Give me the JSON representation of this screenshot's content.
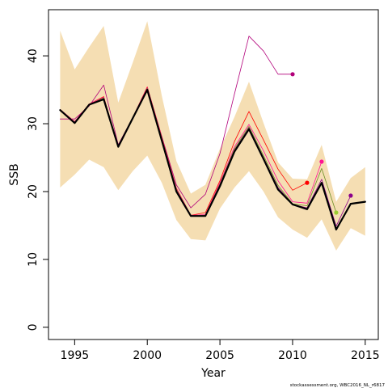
{
  "chart_data": {
    "type": "line",
    "xlabel": "Year",
    "ylabel": "SSB",
    "xlim": [
      1993.2,
      2015.9
    ],
    "ylim": [
      -1.8,
      46.8
    ],
    "x_ticks": [
      1995,
      2000,
      2005,
      2010,
      2015
    ],
    "y_ticks": [
      0,
      10,
      20,
      30,
      40
    ],
    "grid": false,
    "legend": "none",
    "confidence_band": {
      "color": "#f5deb3",
      "x": [
        1994,
        1995,
        1996,
        1997,
        1998,
        1999,
        2000,
        2001,
        2002,
        2003,
        2004,
        2005,
        2006,
        2007,
        2008,
        2009,
        2010,
        2011,
        2012,
        2013,
        2014,
        2015
      ],
      "lower": [
        20.6,
        22.5,
        24.7,
        23.6,
        20.2,
        23.0,
        25.3,
        21.3,
        15.8,
        13.0,
        12.8,
        17.5,
        20.6,
        23.0,
        20.0,
        16.2,
        14.4,
        13.2,
        15.9,
        11.3,
        14.6,
        13.5
      ],
      "upper": [
        43.7,
        38.0,
        41.3,
        44.4,
        33.1,
        39.0,
        45.1,
        34.1,
        24.5,
        19.7,
        21.0,
        26.3,
        31.0,
        36.2,
        30.1,
        24.3,
        21.9,
        21.8,
        26.9,
        18.5,
        22.0,
        23.6
      ]
    },
    "series": [
      {
        "color": "#b2007a",
        "width": 0.8,
        "x": [
          1994,
          1995,
          1996,
          1997,
          1998,
          1999,
          2000,
          2001,
          2002,
          2003,
          2004,
          2005,
          2006,
          2007,
          2008,
          2009,
          2010
        ],
        "values": [
          30.7,
          30.7,
          32.6,
          35.7,
          26.9,
          30.9,
          35.4,
          28.1,
          21.0,
          17.6,
          19.6,
          25.6,
          34.4,
          42.9,
          40.7,
          37.3,
          37.3
        ],
        "end_dot": true
      },
      {
        "color": "#ff0000",
        "width": 0.8,
        "x": [
          1994,
          1995,
          1996,
          1997,
          1998,
          1999,
          2000,
          2001,
          2002,
          2003,
          2004,
          2005,
          2006,
          2007,
          2008,
          2009,
          2010,
          2011
        ],
        "values": [
          32.1,
          30.3,
          32.9,
          34.0,
          26.6,
          30.9,
          35.4,
          28.0,
          20.5,
          16.5,
          16.9,
          21.6,
          27.4,
          31.8,
          27.6,
          23.3,
          20.2,
          21.3
        ],
        "end_dot": true
      },
      {
        "color": "#ff1493",
        "width": 0.8,
        "x": [
          1994,
          1995,
          1996,
          1997,
          1998,
          1999,
          2000,
          2001,
          2002,
          2003,
          2004,
          2005,
          2006,
          2007,
          2008,
          2009,
          2010,
          2011,
          2012
        ],
        "values": [
          32.1,
          30.3,
          32.9,
          33.9,
          26.6,
          30.9,
          35.3,
          27.9,
          20.4,
          16.5,
          16.6,
          21.3,
          26.6,
          29.9,
          26.0,
          21.6,
          18.5,
          18.3,
          24.4
        ],
        "end_dot": true
      },
      {
        "color": "#6b8e23",
        "width": 0.8,
        "x": [
          1994,
          1995,
          1996,
          1997,
          1998,
          1999,
          2000,
          2001,
          2002,
          2003,
          2004,
          2005,
          2006,
          2007,
          2008,
          2009,
          2010,
          2011,
          2012,
          2013
        ],
        "values": [
          32.0,
          30.2,
          32.8,
          33.8,
          26.6,
          30.8,
          35.2,
          27.8,
          20.3,
          16.4,
          16.5,
          21.1,
          26.3,
          29.6,
          25.3,
          20.9,
          18.2,
          17.9,
          23.4,
          16.9
        ],
        "end_dot_color": "#9acd32",
        "end_dot": true
      },
      {
        "color": "#8b008b",
        "width": 0.8,
        "x": [
          1994,
          1995,
          1996,
          1997,
          1998,
          1999,
          2000,
          2001,
          2002,
          2003,
          2004,
          2005,
          2006,
          2007,
          2008,
          2009,
          2010,
          2011,
          2012,
          2013,
          2014
        ],
        "values": [
          32.0,
          30.2,
          32.8,
          33.7,
          26.6,
          30.8,
          35.1,
          27.7,
          20.2,
          16.4,
          16.4,
          21.0,
          26.1,
          29.4,
          25.0,
          20.6,
          18.1,
          17.6,
          21.8,
          14.9,
          19.4
        ],
        "end_dot": true
      },
      {
        "color": "#000000",
        "width": 2.2,
        "x": [
          1994,
          1995,
          1996,
          1997,
          1998,
          1999,
          2000,
          2001,
          2002,
          2003,
          2004,
          2005,
          2006,
          2007,
          2008,
          2009,
          2010,
          2011,
          2012,
          2013,
          2014,
          2015
        ],
        "values": [
          32.0,
          30.1,
          32.8,
          33.6,
          26.6,
          30.8,
          35.0,
          27.5,
          20.0,
          16.4,
          16.4,
          20.8,
          25.9,
          29.2,
          24.8,
          20.3,
          18.1,
          17.4,
          21.3,
          14.4,
          18.2,
          18.5
        ],
        "end_dot": false
      }
    ],
    "footnote": "stockassessment.org, WBC2016_NL_r6817"
  }
}
